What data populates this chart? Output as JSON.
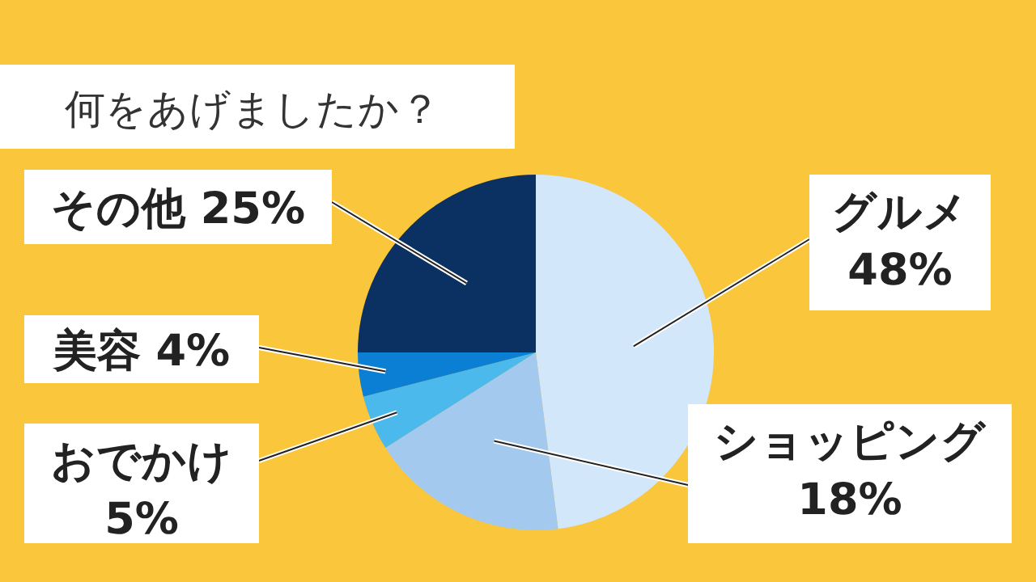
{
  "chart_data": {
    "type": "pie",
    "title": "何をあげましたか？",
    "categories": [
      "グルメ",
      "ショッピング",
      "おでかけ",
      "美容",
      "その他"
    ],
    "values": [
      48,
      18,
      5,
      4,
      25
    ],
    "value_labels": [
      "48%",
      "18%",
      "5%",
      "4%",
      "25%"
    ],
    "colors": [
      "#d3e7fb",
      "#a3c9ee",
      "#4bb9ec",
      "#0b7fd3",
      "#0b3163"
    ],
    "legend": false
  }
}
